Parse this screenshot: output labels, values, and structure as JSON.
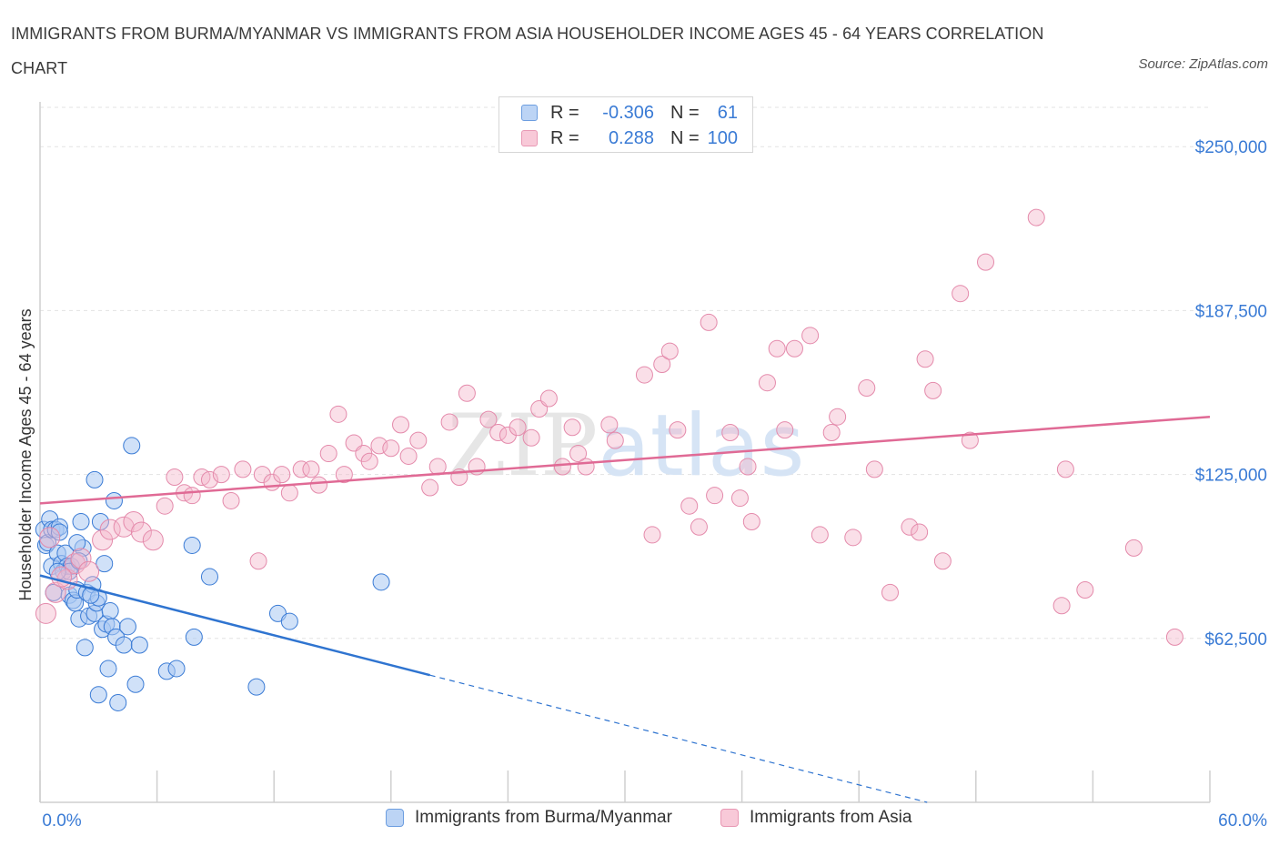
{
  "title": "IMMIGRANTS FROM BURMA/MYANMAR VS IMMIGRANTS FROM ASIA HOUSEHOLDER INCOME AGES 45 - 64 YEARS CORRELATION CHART",
  "source": "Source: ZipAtlas.com",
  "watermark": "ZIPatlas",
  "colors": {
    "blue": "#3a7bd5",
    "blue_fill": "#a9c8f2",
    "pink": "#e06a95",
    "pink_fill": "#f5b8cb",
    "grid": "#e2e2e2",
    "axis_label": "#3a7bd5"
  },
  "legend": {
    "series1": {
      "r_label": "R =",
      "r_value": "-0.306",
      "n_label": "N =",
      "n_value": "61"
    },
    "series2": {
      "r_label": "R =",
      "r_value": "0.288",
      "n_label": "N =",
      "n_value": "100"
    }
  },
  "chart_data": {
    "type": "scatter",
    "ylabel": "Householder Income Ages 45 - 64 years",
    "xlim": [
      0,
      60
    ],
    "ylim": [
      0,
      265000
    ],
    "x_tick_labels": [
      "0.0%",
      "60.0%"
    ],
    "y_ticks": [
      62500,
      125000,
      187500,
      250000
    ],
    "y_tick_labels": [
      "$62,500",
      "$125,000",
      "$187,500",
      "$250,000"
    ],
    "grid": true,
    "legend_position": "top-center",
    "series": [
      {
        "name": "Immigrants from Burma/Myanmar",
        "color": "#3a7bd5",
        "trend": {
          "x": [
            0,
            20
          ],
          "y": [
            86500,
            48500
          ],
          "dashed_to_x": 45.5,
          "dashed_to_y": 0
        },
        "points": [
          [
            0.2,
            104000
          ],
          [
            0.3,
            98000
          ],
          [
            0.4,
            99000
          ],
          [
            0.5,
            108000
          ],
          [
            0.6,
            104000
          ],
          [
            0.6,
            90000
          ],
          [
            0.7,
            80000
          ],
          [
            0.8,
            104000
          ],
          [
            0.9,
            95000
          ],
          [
            1.0,
            105000
          ],
          [
            1.1,
            91000
          ],
          [
            1.2,
            88000
          ],
          [
            1.3,
            95000
          ],
          [
            1.4,
            90000
          ],
          [
            1.5,
            79000
          ],
          [
            1.6,
            90000
          ],
          [
            1.7,
            77000
          ],
          [
            1.8,
            76000
          ],
          [
            1.9,
            81000
          ],
          [
            2.0,
            70000
          ],
          [
            2.1,
            107000
          ],
          [
            2.2,
            97000
          ],
          [
            2.3,
            59000
          ],
          [
            2.4,
            80000
          ],
          [
            2.5,
            71000
          ],
          [
            2.7,
            83000
          ],
          [
            2.8,
            72000
          ],
          [
            2.9,
            76000
          ],
          [
            3.0,
            41000
          ],
          [
            3.1,
            107000
          ],
          [
            3.2,
            66000
          ],
          [
            3.3,
            91000
          ],
          [
            3.4,
            68000
          ],
          [
            3.5,
            51000
          ],
          [
            3.6,
            73000
          ],
          [
            3.7,
            67000
          ],
          [
            3.8,
            115000
          ],
          [
            3.9,
            63000
          ],
          [
            4.0,
            38000
          ],
          [
            4.3,
            60000
          ],
          [
            4.5,
            67000
          ],
          [
            4.7,
            136000
          ],
          [
            4.9,
            45000
          ],
          [
            5.1,
            60000
          ],
          [
            6.5,
            50000
          ],
          [
            7.0,
            51000
          ],
          [
            7.8,
            98000
          ],
          [
            7.9,
            63000
          ],
          [
            8.7,
            86000
          ],
          [
            11.1,
            44000
          ],
          [
            12.2,
            72000
          ],
          [
            12.8,
            69000
          ],
          [
            17.5,
            84000
          ],
          [
            2.8,
            123000
          ],
          [
            1.5,
            88000
          ],
          [
            2.0,
            92000
          ],
          [
            3.0,
            78000
          ],
          [
            1.9,
            99000
          ],
          [
            0.9,
            88000
          ],
          [
            2.6,
            79000
          ],
          [
            1.0,
            103000
          ]
        ]
      },
      {
        "name": "Immigrants from Asia",
        "color": "#e06a95",
        "trend": {
          "x": [
            0,
            60
          ],
          "y": [
            114000,
            147000
          ]
        },
        "points": [
          [
            0.3,
            72000
          ],
          [
            0.8,
            80000
          ],
          [
            1.4,
            85000
          ],
          [
            1.8,
            91000
          ],
          [
            2.1,
            93000
          ],
          [
            2.5,
            88000
          ],
          [
            3.2,
            100000
          ],
          [
            3.6,
            104000
          ],
          [
            4.3,
            105000
          ],
          [
            4.8,
            107000
          ],
          [
            5.2,
            103000
          ],
          [
            5.8,
            100000
          ],
          [
            6.4,
            113000
          ],
          [
            6.9,
            124000
          ],
          [
            7.4,
            118000
          ],
          [
            7.8,
            117000
          ],
          [
            8.3,
            124000
          ],
          [
            8.7,
            123000
          ],
          [
            9.3,
            125000
          ],
          [
            9.8,
            115000
          ],
          [
            10.4,
            127000
          ],
          [
            11.2,
            92000
          ],
          [
            11.4,
            125000
          ],
          [
            11.9,
            122000
          ],
          [
            12.4,
            125000
          ],
          [
            12.8,
            118000
          ],
          [
            13.4,
            127000
          ],
          [
            13.9,
            127000
          ],
          [
            14.3,
            121000
          ],
          [
            14.8,
            133000
          ],
          [
            15.3,
            148000
          ],
          [
            15.6,
            125000
          ],
          [
            16.1,
            137000
          ],
          [
            16.6,
            133000
          ],
          [
            16.9,
            130000
          ],
          [
            17.4,
            136000
          ],
          [
            18.0,
            135000
          ],
          [
            18.5,
            144000
          ],
          [
            18.9,
            132000
          ],
          [
            19.4,
            138000
          ],
          [
            20.0,
            120000
          ],
          [
            20.4,
            128000
          ],
          [
            21.0,
            145000
          ],
          [
            21.5,
            124000
          ],
          [
            21.9,
            156000
          ],
          [
            22.4,
            128000
          ],
          [
            23.0,
            146000
          ],
          [
            23.5,
            141000
          ],
          [
            24.0,
            140000
          ],
          [
            24.5,
            143000
          ],
          [
            25.2,
            139000
          ],
          [
            25.6,
            150000
          ],
          [
            26.1,
            154000
          ],
          [
            26.8,
            128000
          ],
          [
            27.3,
            143000
          ],
          [
            27.6,
            133000
          ],
          [
            28.0,
            128000
          ],
          [
            29.2,
            144000
          ],
          [
            29.5,
            138000
          ],
          [
            31.0,
            163000
          ],
          [
            31.4,
            102000
          ],
          [
            31.9,
            167000
          ],
          [
            32.3,
            172000
          ],
          [
            32.7,
            142000
          ],
          [
            33.3,
            113000
          ],
          [
            33.8,
            105000
          ],
          [
            34.3,
            183000
          ],
          [
            34.6,
            117000
          ],
          [
            35.4,
            141000
          ],
          [
            35.9,
            116000
          ],
          [
            36.3,
            128000
          ],
          [
            36.5,
            107000
          ],
          [
            37.3,
            160000
          ],
          [
            37.8,
            173000
          ],
          [
            38.2,
            142000
          ],
          [
            38.7,
            173000
          ],
          [
            39.5,
            178000
          ],
          [
            40.0,
            102000
          ],
          [
            40.6,
            141000
          ],
          [
            40.9,
            147000
          ],
          [
            41.7,
            101000
          ],
          [
            42.4,
            158000
          ],
          [
            42.8,
            127000
          ],
          [
            43.6,
            80000
          ],
          [
            44.6,
            105000
          ],
          [
            45.1,
            103000
          ],
          [
            45.4,
            169000
          ],
          [
            45.8,
            157000
          ],
          [
            46.3,
            92000
          ],
          [
            47.2,
            194000
          ],
          [
            47.7,
            138000
          ],
          [
            48.5,
            206000
          ],
          [
            51.1,
            223000
          ],
          [
            52.4,
            75000
          ],
          [
            52.6,
            127000
          ],
          [
            53.6,
            81000
          ],
          [
            56.1,
            97000
          ],
          [
            58.2,
            63000
          ],
          [
            0.5,
            101000
          ],
          [
            1.1,
            86000
          ]
        ]
      }
    ]
  },
  "bottom_legend": {
    "item1": "Immigrants from Burma/Myanmar",
    "item2": "Immigrants from Asia"
  }
}
